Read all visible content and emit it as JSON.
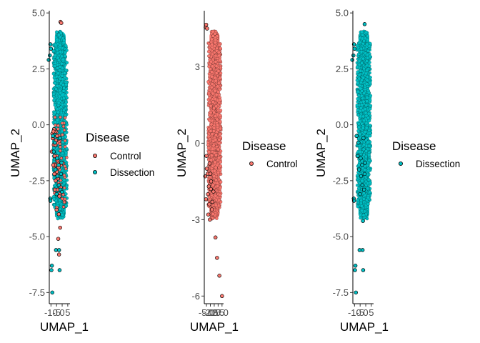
{
  "colors": {
    "Control": "#F8766D",
    "Dissection": "#00BFC4",
    "outline": "#000000"
  },
  "chart_data": [
    {
      "type": "scatter",
      "xlabel": "UMAP_1",
      "ylabel": "UMAP_2",
      "xlim": [
        -11.5,
        7
      ],
      "ylim": [
        -8,
        5.1
      ],
      "xticks": [
        -10,
        -5,
        0,
        5
      ],
      "xtick_labels": [
        "-10",
        "-5",
        "0",
        "5"
      ],
      "yticks": [
        -7.5,
        -5.0,
        -2.5,
        0.0,
        2.5,
        5.0
      ],
      "ytick_labels": [
        "-7.5",
        "-5.0",
        "-2.5",
        "0.0",
        "2.5",
        "5.0"
      ],
      "legend": {
        "title": "Disease",
        "entries": [
          "Control",
          "Dissection"
        ],
        "placement": "right"
      },
      "series": [
        {
          "name": "Control",
          "points": [
            [
              -1.5,
              4.6
            ],
            [
              -0.8,
              4.55
            ],
            [
              -8.5,
              -0.6
            ],
            [
              -7.5,
              -0.9
            ],
            [
              -6.8,
              -1.4
            ],
            [
              -5.9,
              -0.3
            ],
            [
              -6.2,
              -1.8
            ],
            [
              -4.8,
              -2.1
            ],
            [
              -7.2,
              -0.2
            ],
            [
              -9.2,
              -1.2
            ],
            [
              -5.5,
              -0.7
            ],
            [
              -3.8,
              -2.4
            ],
            [
              -6.5,
              -2.9
            ],
            [
              -4.1,
              -1.6
            ],
            [
              -8.0,
              -1.8
            ],
            [
              -7.0,
              -2.2
            ],
            [
              -5.0,
              -3.8
            ],
            [
              -3.0,
              -4.0
            ],
            [
              -1.8,
              -4.6
            ],
            [
              -3.5,
              -5.1
            ],
            [
              -2.8,
              -5.8
            ],
            [
              -1.2,
              -2.8
            ],
            [
              -6.0,
              -0.9
            ],
            [
              -8.8,
              -0.4
            ],
            [
              -4.5,
              -0.5
            ],
            [
              -7.8,
              -0.3
            ],
            [
              -5.8,
              -2.5
            ],
            [
              -3.2,
              -1.9
            ],
            [
              -2.5,
              -3.2
            ],
            [
              -4.0,
              -2.9
            ]
          ]
        },
        {
          "name": "Dissection",
          "points": [
            [
              -11.0,
              3.1
            ],
            [
              -10.5,
              3.6
            ],
            [
              -10.0,
              3.4
            ],
            [
              -12.0,
              2.9
            ],
            [
              -10.7,
              -3.3
            ],
            [
              -10.5,
              -3.4
            ],
            [
              -9.2,
              -6.3
            ],
            [
              -9.6,
              -6.5
            ],
            [
              -8.8,
              -7.5
            ],
            [
              -5.5,
              -5.6
            ],
            [
              -2.8,
              -5.6
            ],
            [
              -2.3,
              -6.5
            ],
            [
              -4.5,
              -1.5
            ],
            [
              -1.5,
              -2.9
            ],
            [
              -3.0,
              -2.7
            ],
            [
              -6.5,
              -0.8
            ],
            [
              -7.5,
              -1.2
            ],
            [
              -5.0,
              -3.1
            ],
            [
              -3.2,
              -1.8
            ],
            [
              -6.0,
              -2.0
            ],
            [
              -1.0,
              -2.2
            ],
            [
              -0.6,
              -1.7
            ],
            [
              -0.2,
              -3.0
            ],
            [
              -2.0,
              -0.6
            ],
            [
              -4.2,
              -2.3
            ],
            [
              -8.2,
              -0.5
            ]
          ]
        }
      ]
    },
    {
      "type": "scatter",
      "xlabel": "UMAP_1",
      "ylabel": "UMAP_2",
      "xlim": [
        -6.4,
        6
      ],
      "ylim": [
        -6.3,
        5.2
      ],
      "xticks": [
        -5.0,
        -2.5,
        0.0,
        2.5,
        5.0
      ],
      "xtick_labels": [
        "-5.0",
        "-2.5",
        "0.0",
        "2.5",
        "5.0"
      ],
      "yticks": [
        -6,
        -3,
        0,
        3
      ],
      "ytick_labels": [
        "-6",
        "-3",
        "0",
        "3"
      ],
      "legend": {
        "title": "Disease",
        "entries": [
          "Control"
        ],
        "placement": "right"
      },
      "series": [
        {
          "name": "Control",
          "points": [
            [
              -5.5,
              4.55
            ],
            [
              -5.2,
              4.65
            ],
            [
              -4.6,
              4.5
            ],
            [
              -5.0,
              -0.5
            ],
            [
              -4.2,
              -1.2
            ],
            [
              -5.8,
              -1.3
            ],
            [
              -3.5,
              -1.7
            ],
            [
              -2.2,
              -1.8
            ],
            [
              -4.0,
              -2.0
            ],
            [
              -5.3,
              -2.2
            ],
            [
              -3.0,
              -0.8
            ],
            [
              -2.5,
              -1.2
            ],
            [
              -1.2,
              -2.3
            ],
            [
              -3.8,
              -2.8
            ],
            [
              -2.8,
              -3.0
            ],
            [
              0.8,
              -3.7
            ],
            [
              1.8,
              -4.5
            ],
            [
              3.3,
              -5.2
            ],
            [
              5.0,
              -6.0
            ],
            [
              -1.5,
              -2.6
            ],
            [
              -0.5,
              -1.9
            ],
            [
              -4.8,
              -1.0
            ],
            [
              -3.2,
              -2.4
            ],
            [
              -2.0,
              -1.5
            ]
          ]
        }
      ]
    },
    {
      "type": "scatter",
      "xlabel": "UMAP_1",
      "ylabel": "UMAP_2",
      "xlim": [
        -11.5,
        7
      ],
      "ylim": [
        -8,
        5.1
      ],
      "xticks": [
        -10,
        -5,
        0,
        5
      ],
      "xtick_labels": [
        "-10",
        "-5",
        "0",
        "5"
      ],
      "yticks": [
        -7.5,
        -5.0,
        -2.5,
        0.0,
        2.5,
        5.0
      ],
      "ytick_labels": [
        "-7.5",
        "-5.0",
        "-2.5",
        "0.0",
        "2.5",
        "5.0"
      ],
      "legend": {
        "title": "Disease",
        "entries": [
          "Dissection"
        ],
        "placement": "right"
      },
      "series": [
        {
          "name": "Dissection",
          "points": [
            [
              -11.0,
              3.1
            ],
            [
              -10.5,
              3.6
            ],
            [
              -10.0,
              3.4
            ],
            [
              -12.0,
              2.9
            ],
            [
              -10.7,
              -3.3
            ],
            [
              -10.5,
              -3.4
            ],
            [
              -1.0,
              4.5
            ],
            [
              -8.8,
              -7.5
            ],
            [
              -9.2,
              -6.3
            ],
            [
              -9.6,
              -6.5
            ],
            [
              -5.5,
              -5.6
            ],
            [
              -2.8,
              -5.6
            ],
            [
              -2.3,
              -6.5
            ],
            [
              -4.5,
              -1.5
            ],
            [
              -2.5,
              -4.3
            ],
            [
              -1.5,
              -2.9
            ],
            [
              -3.0,
              -2.7
            ],
            [
              -6.5,
              -0.8
            ],
            [
              -5.0,
              -3.1
            ],
            [
              -3.2,
              -1.8
            ],
            [
              -6.0,
              -2.0
            ],
            [
              -1.0,
              -2.2
            ],
            [
              -0.6,
              -1.7
            ],
            [
              -2.0,
              -0.6
            ],
            [
              -4.2,
              -2.3
            ],
            [
              -8.2,
              -0.5
            ],
            [
              -7.2,
              -1.4
            ]
          ]
        }
      ]
    }
  ]
}
